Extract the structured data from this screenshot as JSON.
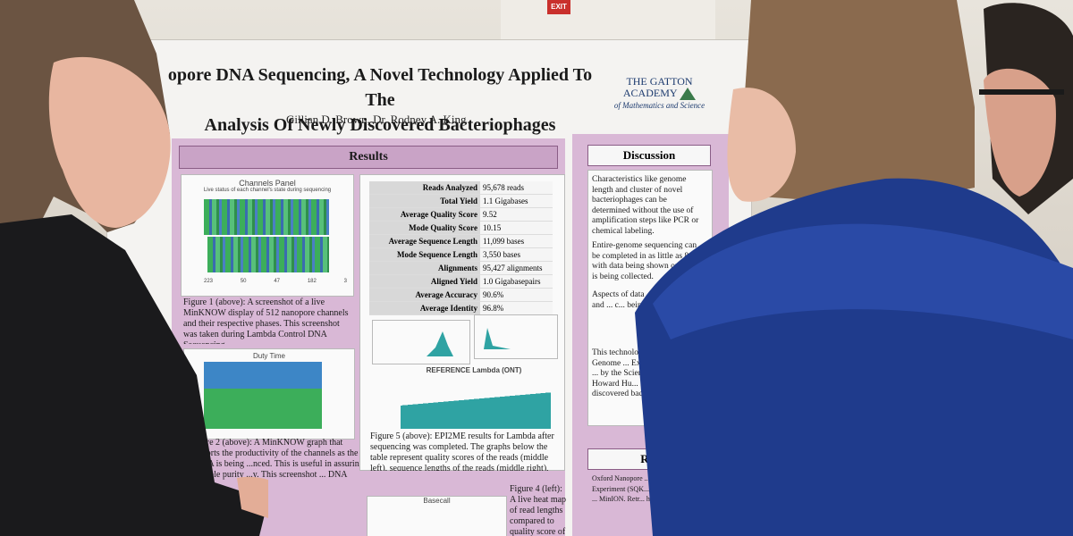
{
  "scene": {
    "exit_sign": "EXIT"
  },
  "poster": {
    "title_line1": "opore DNA Sequencing, A Novel Technology Applied To The",
    "title_line2": "Analysis Of Newly Discovered Bacteriophages",
    "authors": "Gillian D. Brown, Dr. Rodney A. King",
    "logo": {
      "line1": "THE GATTON",
      "line2": "ACADEMY",
      "line3": "of Mathematics and Science"
    },
    "results_heading": "Results",
    "channels_panel": {
      "title": "Channels Panel",
      "subtitle": "Live status of each channel's state during sequencing",
      "legend": [
        "223",
        "50",
        "47",
        "182",
        "3"
      ]
    },
    "figure1_caption": "Figure 1 (above): A screenshot of a live MinKNOW display of 512 nanopore channels and their respective phases. This screenshot was taken during Lambda Control DNA Sequencing.",
    "duty_time": {
      "title": "Duty Time"
    },
    "figure2_caption": "igure 2 (above): A MinKNOW graph that reports the productivity of the channels as the DNA is being ...nced. This is useful in assuring sample purity ...y. This screenshot ... DNA",
    "stats": [
      {
        "k": "Reads Analyzed",
        "v": "95,678 reads"
      },
      {
        "k": "Total Yield",
        "v": "1.1 Gigabases"
      },
      {
        "k": "Average Quality Score",
        "v": "9.52"
      },
      {
        "k": "Mode Quality Score",
        "v": "10.15"
      },
      {
        "k": "Average Sequence Length",
        "v": "11,099 bases"
      },
      {
        "k": "Mode Sequence Length",
        "v": "3,550 bases"
      },
      {
        "k": "Alignments",
        "v": "95,427 alignments"
      },
      {
        "k": "Aligned Yield",
        "v": "1.0 Gigabasepairs"
      },
      {
        "k": "Average Accuracy",
        "v": "90.6%"
      },
      {
        "k": "Average Identity",
        "v": "96.8%"
      }
    ],
    "reference_title": "REFERENCE Lambda (ONT)",
    "figure5_caption": "Figure 5 (above): EPI2ME results for Lambda after sequencing was completed. The graphs below the table represent quality scores of the reads (middle left), sequence lengths of the reads (middle right), and coverage of the genome (bottom).",
    "basecall_title": "Basecall",
    "figure4_caption": "Figure 4 (left): A live heat map of read lengths compared to quality score of the reads. The quality",
    "discussion_heading": "Discussion",
    "discussion": [
      "Characteristics like genome length and cluster of novel bacteriophages can be determined without the use of amplification steps like PCR or chemical labeling.",
      "Entire-genome sequencing can be completed in as little as 8 ho... with data being shown on ... as it is being collected.",
      "Aspects of data ... fragment ... and ... c... being ...",
      "This technology can ... the WKU Genome ... Exploration Program ... by the Science Edu... at the Howard Hu... Institute) to rapid... discovered bacte..."
    ],
    "references_heading": "Ref",
    "references": "Oxford Nanopore ... December 18, ... Experiment (SQK... Oxford Nanopore ... MinION. Retr... https://nanopo..."
  }
}
